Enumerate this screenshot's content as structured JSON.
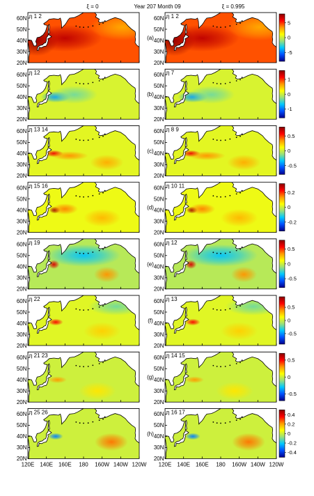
{
  "header": {
    "left": "ξ = 0",
    "center": "Year 207 Month 09",
    "right": "ξ = 0.995"
  },
  "chart_data": {
    "type": "heatmap",
    "map_region": "North Pacific",
    "lat_ticks": [
      "20N",
      "30N",
      "40N",
      "50N",
      "60N"
    ],
    "lon_ticks": [
      "120E",
      "140E",
      "160E",
      "180",
      "160W",
      "140W",
      "120W"
    ],
    "colormap": [
      "#00008b",
      "#0050ff",
      "#00c8ff",
      "#9be07a",
      "#ffff00",
      "#ff9900",
      "#ff0000",
      "#8b0000"
    ],
    "rows": [
      {
        "letter": "(a)",
        "left_label": "η 1 2",
        "right_label": "η 1 2",
        "colorbar_ticks": [
          {
            "label": "5",
            "value": 5
          },
          {
            "label": "0",
            "value": 0
          },
          {
            "label": "-5",
            "value": -5
          }
        ],
        "range": [
          -8,
          8
        ],
        "base": 4.5,
        "features": [
          {
            "lon": 130,
            "lat": 40,
            "amp": 4,
            "rx": 22,
            "ry": 14
          },
          {
            "lon": 160,
            "lat": 42,
            "amp": 2.5,
            "rx": 40,
            "ry": 12
          },
          {
            "lon": 222,
            "lat": 52,
            "amp": -1.5,
            "rx": 35,
            "ry": 12
          }
        ]
      },
      {
        "letter": "(b)",
        "left_label": "η 12",
        "right_label": "η 7",
        "colorbar_ticks": [
          {
            "label": "1",
            "value": 1
          },
          {
            "label": "0",
            "value": 0
          },
          {
            "label": "-1",
            "value": -1
          }
        ],
        "range": [
          -1.6,
          1.6
        ],
        "base": 0.05,
        "features": [
          {
            "lon": 150,
            "lat": 40,
            "amp": -0.9,
            "rx": 16,
            "ry": 5
          },
          {
            "lon": 170,
            "lat": 42,
            "amp": -0.4,
            "rx": 25,
            "ry": 8
          }
        ]
      },
      {
        "letter": "(c)",
        "left_label": "η 13 14",
        "right_label": "η 8 9",
        "colorbar_ticks": [
          {
            "label": "0.5",
            "value": 0.5
          },
          {
            "label": "0",
            "value": 0
          },
          {
            "label": "-0.5",
            "value": -0.5
          }
        ],
        "range": [
          -0.8,
          0.8
        ],
        "base": 0.05,
        "features": [
          {
            "lon": 148,
            "lat": 40,
            "amp": 0.55,
            "rx": 10,
            "ry": 3
          },
          {
            "lon": 165,
            "lat": 38,
            "amp": 0.3,
            "rx": 20,
            "ry": 4
          },
          {
            "lon": 205,
            "lat": 32,
            "amp": 0.25,
            "rx": 18,
            "ry": 7
          }
        ]
      },
      {
        "letter": "(d)",
        "left_label": "η 15 16",
        "right_label": "η 10 11",
        "colorbar_ticks": [
          {
            "label": "0.2",
            "value": 0.2
          },
          {
            "label": "0",
            "value": 0
          },
          {
            "label": "-0.2",
            "value": -0.2
          }
        ],
        "range": [
          -0.32,
          0.32
        ],
        "base": 0.03,
        "features": [
          {
            "lon": 149,
            "lat": 40,
            "amp": 0.28,
            "rx": 6,
            "ry": 3
          },
          {
            "lon": 160,
            "lat": 41,
            "amp": 0.12,
            "rx": 14,
            "ry": 5
          },
          {
            "lon": 200,
            "lat": 33,
            "amp": 0.08,
            "rx": 20,
            "ry": 8
          }
        ]
      },
      {
        "letter": "(e)",
        "left_label": "η 19",
        "right_label": "η 12",
        "colorbar_ticks": [
          {
            "label": "0.5",
            "value": 0.5
          },
          {
            "label": "0",
            "value": 0
          },
          {
            "label": "-0.5",
            "value": -0.5
          }
        ],
        "range": [
          -0.8,
          0.8
        ],
        "base": -0.05,
        "features": [
          {
            "lon": 148,
            "lat": 42,
            "amp": 0.7,
            "rx": 6,
            "ry": 4
          },
          {
            "lon": 205,
            "lat": 33,
            "amp": 0.4,
            "rx": 14,
            "ry": 7
          },
          {
            "lon": 180,
            "lat": 50,
            "amp": -0.3,
            "rx": 40,
            "ry": 10
          }
        ]
      },
      {
        "letter": "(f)",
        "left_label": "η 22",
        "right_label": "η 13",
        "colorbar_ticks": [
          {
            "label": "0.5",
            "value": 0.5
          },
          {
            "label": "0",
            "value": 0
          },
          {
            "label": "-0.5",
            "value": -0.5
          }
        ],
        "range": [
          -0.9,
          0.9
        ],
        "base": 0.05,
        "features": [
          {
            "lon": 150,
            "lat": 41,
            "amp": 0.6,
            "rx": 8,
            "ry": 3
          },
          {
            "lon": 200,
            "lat": 33,
            "amp": 0.2,
            "rx": 20,
            "ry": 8
          },
          {
            "lon": 215,
            "lat": 55,
            "amp": -0.25,
            "rx": 30,
            "ry": 8
          }
        ]
      },
      {
        "letter": "(g)",
        "left_label": "η 21 23",
        "right_label": "η 14 15",
        "colorbar_ticks": [
          {
            "label": "0.5",
            "value": 0.5
          },
          {
            "label": "0",
            "value": 0
          },
          {
            "label": "-0.5",
            "value": -0.5
          }
        ],
        "range": [
          -0.7,
          0.7
        ],
        "base": 0.0,
        "features": [
          {
            "lon": 152,
            "lat": 40,
            "amp": 0.3,
            "rx": 10,
            "ry": 3
          },
          {
            "lon": 195,
            "lat": 30,
            "amp": 0.15,
            "rx": 20,
            "ry": 8
          }
        ]
      },
      {
        "letter": "(h)",
        "left_label": "η 25 26",
        "right_label": "η 16 17",
        "colorbar_ticks": [
          {
            "label": "0.4",
            "value": 0.4
          },
          {
            "label": "0.2",
            "value": 0.2
          },
          {
            "label": "0",
            "value": 0
          },
          {
            "label": "-0.2",
            "value": -0.2
          },
          {
            "label": "-0.4",
            "value": -0.4
          }
        ],
        "range": [
          -0.5,
          0.5
        ],
        "base": 0.0,
        "features": [
          {
            "lon": 150,
            "lat": 40,
            "amp": -0.3,
            "rx": 8,
            "ry": 3
          },
          {
            "lon": 210,
            "lat": 35,
            "amp": 0.25,
            "rx": 18,
            "ry": 8
          }
        ]
      }
    ]
  }
}
